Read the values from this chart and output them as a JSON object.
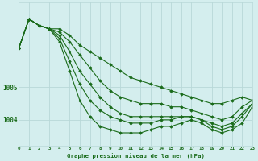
{
  "title": "Graphe pression niveau de la mer (hPa)",
  "background_color": "#d4eeee",
  "grid_color": "#b8d8d8",
  "line_color": "#1a6b1a",
  "xlim": [
    0,
    23
  ],
  "ylim": [
    1003.2,
    1007.6
  ],
  "yticks": [
    1004,
    1005
  ],
  "ytick_labels": [
    "1004",
    "1005"
  ],
  "xticks": [
    0,
    1,
    2,
    3,
    4,
    5,
    6,
    7,
    8,
    9,
    10,
    11,
    12,
    13,
    14,
    15,
    16,
    17,
    18,
    19,
    20,
    21,
    22,
    23
  ],
  "series": [
    [
      1006.2,
      1007.1,
      1006.9,
      1006.8,
      1006.8,
      1006.6,
      1006.3,
      1006.1,
      1005.9,
      1005.7,
      1005.5,
      1005.3,
      1005.2,
      1005.1,
      1005.0,
      1004.9,
      1004.8,
      1004.7,
      1004.6,
      1004.5,
      1004.5,
      1004.6,
      1004.7,
      1004.6
    ],
    [
      1006.2,
      1007.1,
      1006.9,
      1006.8,
      1006.7,
      1006.4,
      1006.0,
      1005.6,
      1005.2,
      1004.9,
      1004.7,
      1004.6,
      1004.5,
      1004.5,
      1004.5,
      1004.4,
      1004.4,
      1004.3,
      1004.2,
      1004.1,
      1004.0,
      1004.1,
      1004.4,
      1004.6
    ],
    [
      1006.2,
      1007.1,
      1006.9,
      1006.8,
      1006.6,
      1006.1,
      1005.5,
      1005.1,
      1004.7,
      1004.4,
      1004.2,
      1004.1,
      1004.1,
      1004.1,
      1004.1,
      1004.1,
      1004.1,
      1004.1,
      1004.0,
      1003.9,
      1003.8,
      1003.9,
      1004.2,
      1004.5
    ],
    [
      1006.2,
      1007.1,
      1006.9,
      1006.8,
      1006.5,
      1005.8,
      1005.1,
      1004.6,
      1004.3,
      1004.1,
      1004.0,
      1003.9,
      1003.9,
      1003.9,
      1004.0,
      1004.0,
      1004.1,
      1004.1,
      1004.0,
      1003.8,
      1003.7,
      1003.8,
      1004.1,
      1004.5
    ],
    [
      1006.2,
      1007.1,
      1006.9,
      1006.8,
      1006.4,
      1005.5,
      1004.6,
      1004.1,
      1003.8,
      1003.7,
      1003.6,
      1003.6,
      1003.6,
      1003.7,
      1003.8,
      1003.8,
      1003.9,
      1004.0,
      1003.9,
      1003.7,
      1003.6,
      1003.7,
      1003.9,
      1004.4
    ]
  ]
}
